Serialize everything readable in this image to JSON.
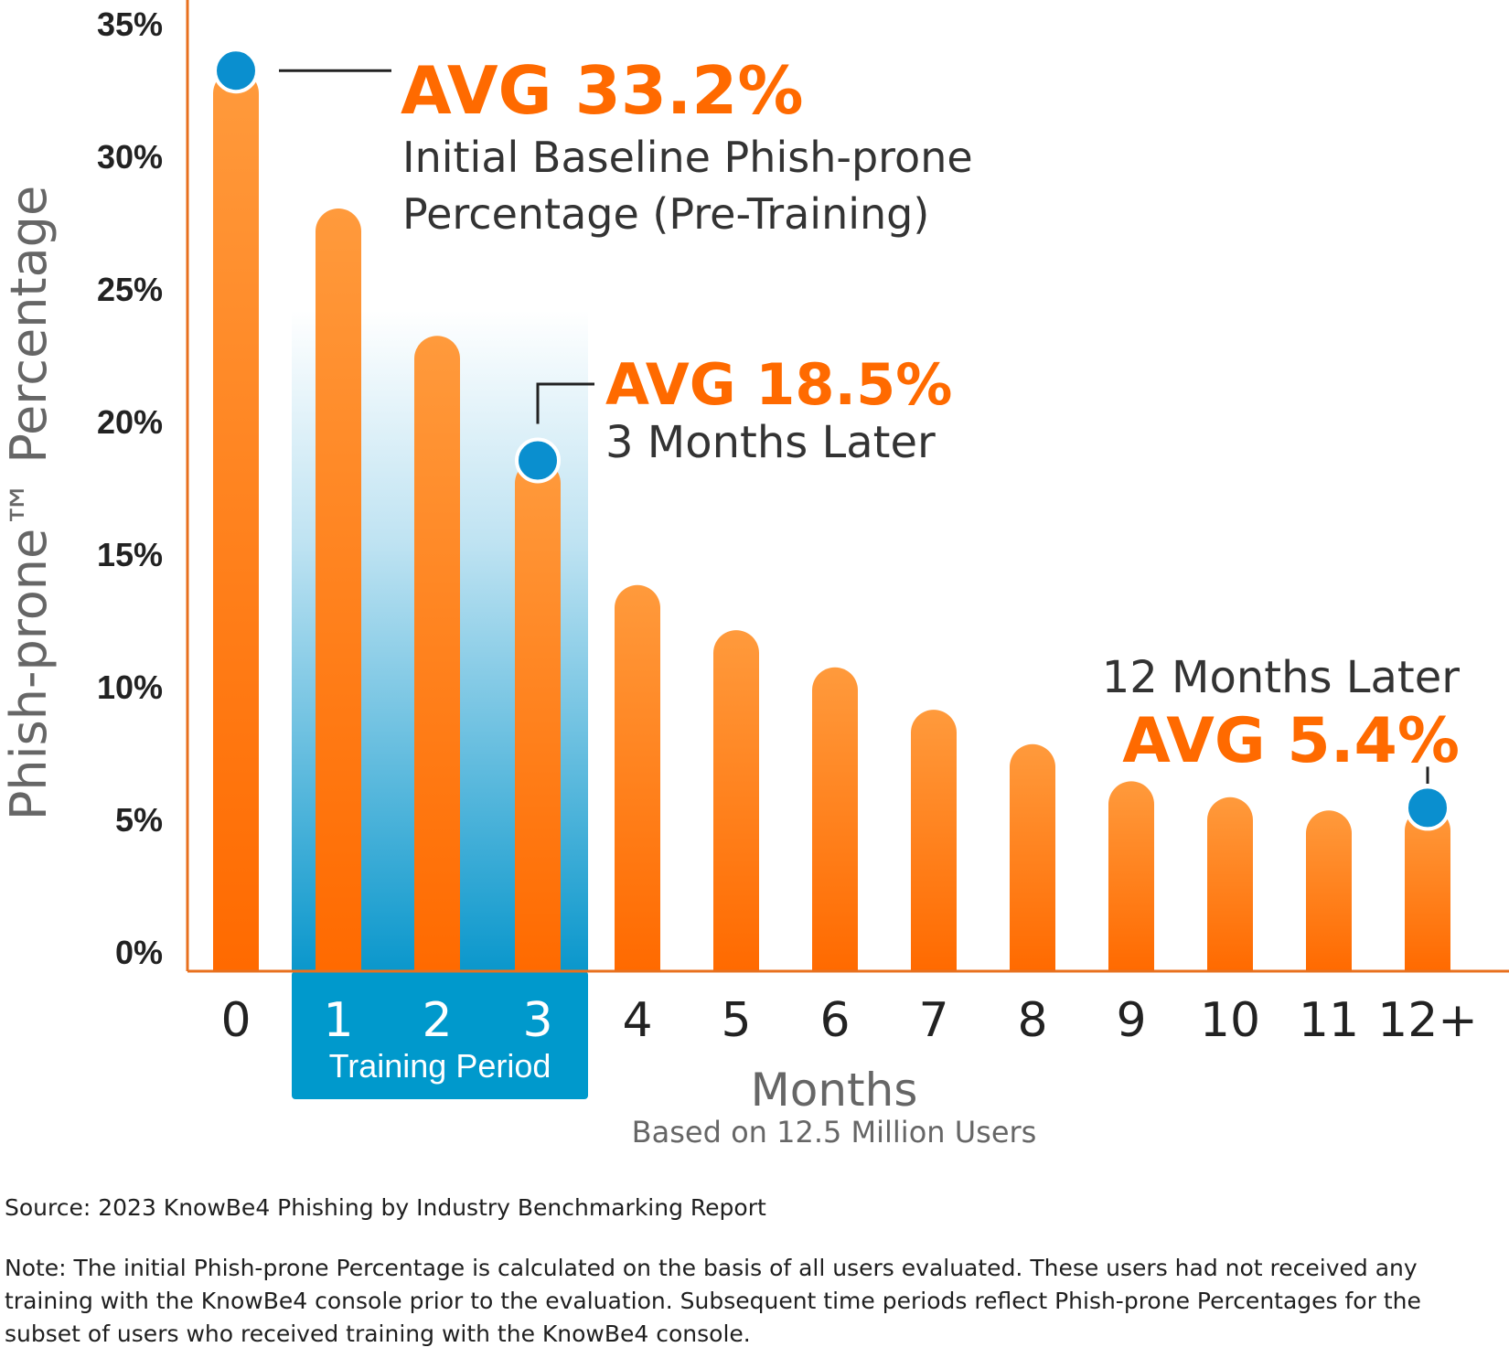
{
  "chart_data": {
    "type": "bar",
    "ylabel": "Phish-prone™ Percentage",
    "xlabel": "Months",
    "subtitle": "Based on 12.5 Million Users",
    "ylim": [
      0,
      35
    ],
    "yticks": [
      "0%",
      "5%",
      "10%",
      "15%",
      "20%",
      "25%",
      "30%",
      "35%"
    ],
    "categories": [
      "0",
      "1",
      "2",
      "3",
      "4",
      "5",
      "6",
      "7",
      "8",
      "9",
      "10",
      "11",
      "12+"
    ],
    "values": [
      33.2,
      28.0,
      23.2,
      18.5,
      13.8,
      12.1,
      10.7,
      9.1,
      7.8,
      6.4,
      5.8,
      5.3,
      5.4
    ],
    "highlight": {
      "label": "Training Period",
      "from": "1",
      "to": "3"
    },
    "annotations": [
      {
        "category": "0",
        "value_text": "AVG 33.2%",
        "caption": [
          "Initial Baseline Phish-prone",
          "Percentage (Pre-Training)"
        ]
      },
      {
        "category": "3",
        "value_text": "AVG 18.5%",
        "caption": [
          "3 Months Later"
        ]
      },
      {
        "category": "12+",
        "value_text": "AVG 5.4%",
        "caption": [
          "12 Months Later"
        ]
      }
    ],
    "colors": {
      "bar": "#ff6a00",
      "bar_light": "#ff9a3c",
      "highlight": "#0099cc",
      "marker": "#0a8fcf",
      "axis": "#e8701e",
      "value_text": "#ff6a00",
      "caption_text": "#333333"
    }
  },
  "footer": {
    "source": "Source: 2023 KnowBe4 Phishing by Industry Benchmarking Report",
    "note": "Note: The initial Phish-prone Percentage is calculated on the basis of all users evaluated. These users had not received any training with the KnowBe4 console prior to the evaluation. Subsequent time periods reflect Phish-prone Percentages for the subset of users who received training with the KnowBe4 console."
  }
}
